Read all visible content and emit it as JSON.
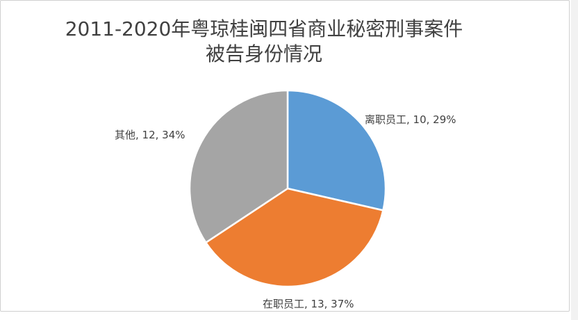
{
  "chart_data": {
    "type": "pie",
    "title_lines": [
      "2011-2020年粤琼桂闽四省商业秘密刑事案件",
      "被告身份情况"
    ],
    "slices": [
      {
        "label": "离职员工",
        "value": 10,
        "percent": "29%",
        "color": "#5b9bd5"
      },
      {
        "label": "在职员工",
        "value": 13,
        "percent": "37%",
        "color": "#ed7d31"
      },
      {
        "label": "其他",
        "value": 12,
        "percent": "34%",
        "color": "#a5a5a5"
      }
    ],
    "data_labels": [
      "离职员工, 10, 29%",
      "在职员工, 13, 37%",
      "其他, 12, 34%"
    ],
    "legend": "none"
  }
}
